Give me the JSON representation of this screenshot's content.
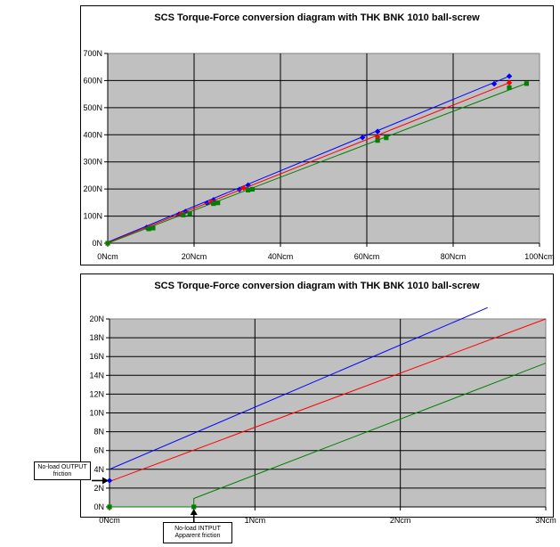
{
  "chart_data": [
    {
      "type": "scatter",
      "title": "SCS Torque-Force conversion diagram with THK BNK 1010 ball-screw",
      "xlabel": "",
      "ylabel": "",
      "xlim": [
        0,
        100
      ],
      "ylim": [
        0,
        700
      ],
      "x_ticks": [
        "0Ncm",
        "20Ncm",
        "40Ncm",
        "60Ncm",
        "80Ncm",
        "100Ncm"
      ],
      "y_ticks": [
        "0N",
        "100N",
        "200N",
        "300N",
        "400N",
        "500N",
        "600N",
        "700N"
      ],
      "grid": true,
      "legend": "none",
      "series": [
        {
          "color": "#0000ff",
          "marker": "diamond",
          "points": [
            [
              0,
              0
            ],
            [
              9,
              58
            ],
            [
              16.5,
              107
            ],
            [
              18,
              117
            ],
            [
              23,
              148
            ],
            [
              24.5,
              160
            ],
            [
              30.5,
              198
            ],
            [
              32.5,
              214
            ],
            [
              59,
              390
            ],
            [
              62.5,
              412
            ],
            [
              89.5,
              588
            ],
            [
              93,
              616
            ]
          ],
          "fit": [
            [
              0,
              4
            ],
            [
              93,
              616
            ]
          ]
        },
        {
          "color": "#ff0000",
          "marker": "diamond",
          "points": [
            [
              0,
              0
            ],
            [
              9.5,
              56
            ],
            [
              17,
              108
            ],
            [
              24,
              152
            ],
            [
              31.5,
              204
            ],
            [
              62.5,
              392
            ],
            [
              93,
              592
            ]
          ],
          "fit": [
            [
              0,
              2
            ],
            [
              93,
              592
            ]
          ]
        },
        {
          "color": "#008000",
          "marker": "square",
          "points": [
            [
              0,
              0
            ],
            [
              9.5,
              53
            ],
            [
              10.5,
              56
            ],
            [
              17.5,
              104
            ],
            [
              19,
              109
            ],
            [
              24.5,
              146
            ],
            [
              25.5,
              149
            ],
            [
              32.5,
              196
            ],
            [
              33.5,
              199
            ],
            [
              62.5,
              379
            ],
            [
              64.5,
              389
            ],
            [
              93,
              574
            ],
            [
              97,
              589
            ]
          ],
          "fit": [
            [
              0,
              0
            ],
            [
              97,
              590
            ]
          ]
        }
      ]
    },
    {
      "type": "line",
      "title": "SCS Torque-Force conversion diagram with THK BNK 1010 ball-screw",
      "xlabel": "",
      "ylabel": "",
      "xlim": [
        0,
        3
      ],
      "ylim": [
        0,
        20
      ],
      "x_ticks": [
        "0Ncm",
        "1Ncm",
        "2Ncm",
        "3Ncm"
      ],
      "y_ticks": [
        "0N",
        "2N",
        "4N",
        "6N",
        "8N",
        "10N",
        "12N",
        "14N",
        "16N",
        "18N",
        "20N"
      ],
      "grid": true,
      "legend": "none",
      "series": [
        {
          "color": "#0000ff",
          "x": [
            0,
            2.6
          ],
          "y": [
            4.0,
            21.2
          ]
        },
        {
          "color": "#ff0000",
          "x": [
            0,
            3
          ],
          "y": [
            2.7,
            20.0
          ]
        },
        {
          "color": "#008000",
          "x": [
            0,
            0.58,
            0.58,
            3
          ],
          "y": [
            0,
            0,
            0.9,
            15.3
          ]
        }
      ],
      "markers": [
        {
          "color": "#0000ff",
          "shape": "diamond",
          "x": 0,
          "y": 2.8
        },
        {
          "color": "#008000",
          "shape": "square",
          "x": 0,
          "y": 0
        },
        {
          "color": "#008000",
          "shape": "square",
          "x": 0.58,
          "y": 0
        }
      ]
    }
  ],
  "annotations": {
    "output_friction_line1": "No-load OUTPUT",
    "output_friction_line2": "friction",
    "input_friction_line1": "No-load INTPUT",
    "input_friction_line2": "Apparent friction"
  }
}
